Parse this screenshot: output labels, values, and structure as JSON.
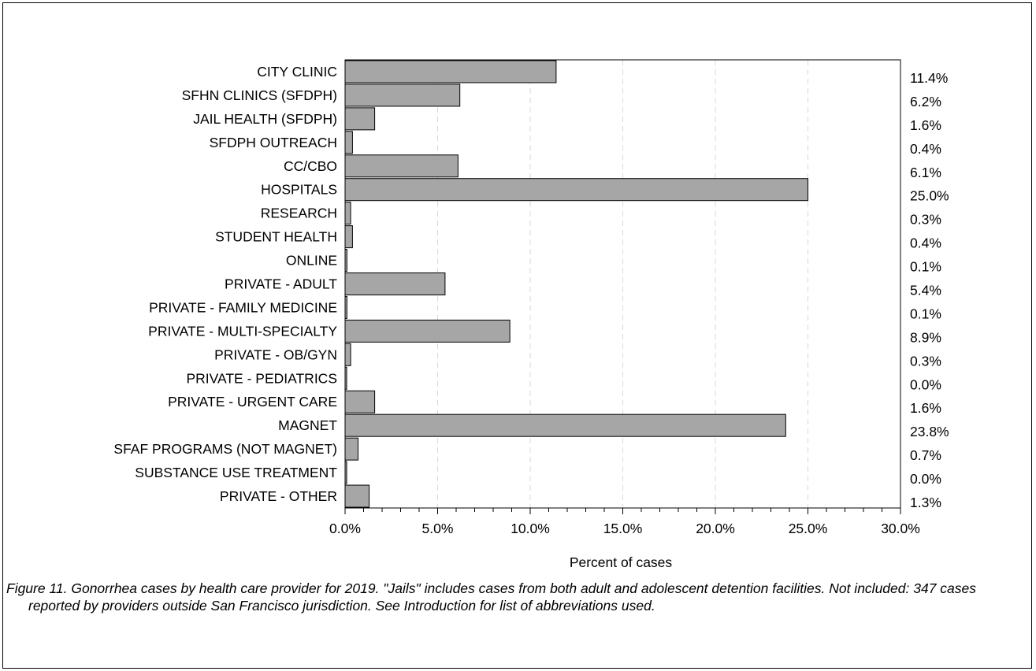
{
  "caption": "Figure 11.  Gonorrhea cases by health care provider for 2019.  \"Jails\" includes cases from both adult and adolescent detention facilities.  Not included: 347 cases reported by providers outside San Francisco jurisdiction. See Introduction for list of abbreviations used.",
  "colors": {
    "bar_fill": "#a6a6a6",
    "bar_stroke": "#000000",
    "grid": "#d9d9d9"
  },
  "chart_data": {
    "type": "bar",
    "orientation": "horizontal",
    "categories": [
      "CITY CLINIC",
      "SFHN CLINICS (SFDPH)",
      "JAIL HEALTH (SFDPH)",
      "SFDPH OUTREACH",
      "CC/CBO",
      "HOSPITALS",
      "RESEARCH",
      "STUDENT HEALTH",
      "ONLINE",
      "PRIVATE - ADULT",
      "PRIVATE - FAMILY MEDICINE",
      "PRIVATE - MULTI-SPECIALTY",
      "PRIVATE - OB/GYN",
      "PRIVATE - PEDIATRICS",
      "PRIVATE - URGENT CARE",
      "MAGNET",
      "SFAF PROGRAMS (NOT MAGNET)",
      "SUBSTANCE USE TREATMENT",
      "PRIVATE - OTHER"
    ],
    "values": [
      11.4,
      6.2,
      1.6,
      0.4,
      6.1,
      25.0,
      0.3,
      0.4,
      0.1,
      5.4,
      0.1,
      8.9,
      0.3,
      0.0,
      1.6,
      23.8,
      0.7,
      0.0,
      1.3
    ],
    "value_labels": [
      "11.4%",
      "6.2%",
      "1.6%",
      "0.4%",
      "6.1%",
      "25.0%",
      "0.3%",
      "0.4%",
      "0.1%",
      "5.4%",
      "0.1%",
      "8.9%",
      "0.3%",
      "0.0%",
      "1.6%",
      "23.8%",
      "0.7%",
      "0.0%",
      "1.3%"
    ],
    "xlabel": "Percent of cases",
    "ylabel": "",
    "xlim": [
      0,
      30
    ],
    "xticks": [
      0,
      5,
      10,
      15,
      20,
      25,
      30
    ],
    "xtick_labels": [
      "0.0%",
      "5.0%",
      "10.0%",
      "15.0%",
      "20.0%",
      "25.0%",
      "30.0%"
    ],
    "grid": "vertical dashed",
    "legend": "none"
  }
}
